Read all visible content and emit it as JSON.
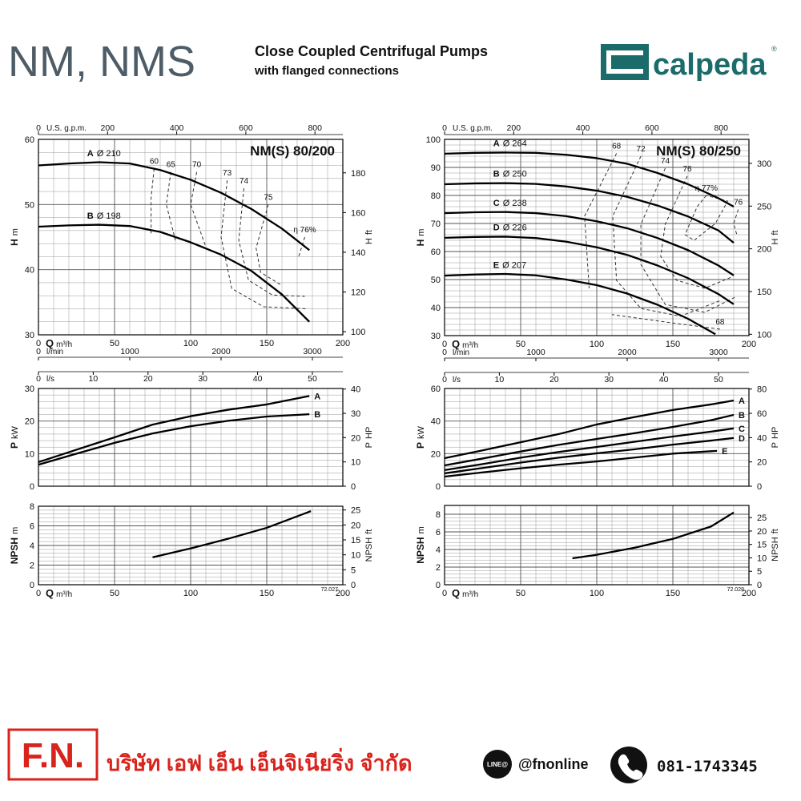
{
  "header": {
    "title": "NM, NMS",
    "subtitle_1": "Close Coupled Centrifugal Pumps",
    "subtitle_2": "with flanged connections",
    "logo": "calpeda",
    "logo_mark": "®"
  },
  "chart_data": [
    {
      "type": "line",
      "title": "NM(S) 80/200",
      "xlabel": "Q",
      "xunit": "m³/h",
      "xlim": [
        0,
        200
      ],
      "xticks": [
        0,
        50,
        100,
        150,
        200
      ],
      "ylabel": "H",
      "yunit": "m",
      "ylim": [
        30,
        60
      ],
      "yticks": [
        30,
        40,
        50,
        60
      ],
      "y2label": "H",
      "y2unit": "ft",
      "y2lim": [
        98.43,
        196.85
      ],
      "y2ticks": [
        100,
        120,
        140,
        160,
        180
      ],
      "grid": true,
      "color": "#000",
      "series_label_position": "start",
      "contour_style": "dashed",
      "extra_x_axes": [
        {
          "label": "U.S. g.p.m.",
          "position": "top",
          "lim": [
            0,
            880.6
          ],
          "ticks": [
            0,
            200,
            400,
            600,
            800
          ]
        },
        {
          "label": "l/min",
          "position": "bottom",
          "lim": [
            0,
            3333.3
          ],
          "ticks": [
            0,
            1000,
            2000,
            3000
          ]
        },
        {
          "label": "l/s",
          "position": "bottom",
          "lim": [
            0,
            55.56
          ],
          "ticks": [
            0,
            10,
            20,
            30,
            40,
            50
          ]
        }
      ],
      "series": [
        {
          "name": "A",
          "diameter": "Ø 210",
          "x": [
            0,
            20,
            40,
            60,
            80,
            100,
            120,
            140,
            160,
            178
          ],
          "values": [
            56,
            56.3,
            56.5,
            56.3,
            55.3,
            53.8,
            51.8,
            49.3,
            46.3,
            43
          ]
        },
        {
          "name": "B",
          "diameter": "Ø 198",
          "x": [
            0,
            20,
            40,
            60,
            80,
            100,
            120,
            140,
            160,
            178
          ],
          "values": [
            46.6,
            46.8,
            46.9,
            46.7,
            45.8,
            44.2,
            42.3,
            39.8,
            36.2,
            32
          ]
        }
      ],
      "efficiency_curves": [
        {
          "name": "60",
          "x": [
            76,
            74,
            74
          ],
          "values": [
            55.5,
            51,
            45.5
          ]
        },
        {
          "name": "65",
          "x": [
            87,
            84,
            90
          ],
          "values": [
            55,
            50,
            44.5
          ]
        },
        {
          "name": "70",
          "x": [
            104,
            100,
            110
          ],
          "values": [
            55,
            50,
            43.5
          ]
        },
        {
          "name": "73",
          "x": [
            124,
            120,
            127,
            148,
            177
          ],
          "values": [
            53.7,
            45,
            37.1,
            34.3,
            34
          ]
        },
        {
          "name": "74",
          "x": [
            135,
            131.6,
            138,
            153.7,
            175
          ],
          "values": [
            52.5,
            44.5,
            38.4,
            36.1,
            35.9
          ]
        },
        {
          "name": "75",
          "x": [
            151,
            143,
            146,
            159
          ],
          "values": [
            50,
            43.3,
            39.6,
            37.7
          ]
        },
        {
          "name": "η 76%",
          "x": [
            175,
            171
          ],
          "values": [
            45,
            42
          ]
        }
      ]
    },
    {
      "type": "line",
      "xlim": [
        0,
        200
      ],
      "xticks": [
        0,
        50,
        100,
        150,
        200
      ],
      "xtick_labels": false,
      "ylabel": "P",
      "yunit": "kW",
      "ylim": [
        0,
        30
      ],
      "yticks": [
        0,
        10,
        20,
        30
      ],
      "y2label": "P",
      "y2unit": "HP",
      "y2lim": [
        0,
        40.23
      ],
      "y2ticks": [
        0,
        10,
        20,
        30,
        40
      ],
      "grid": true,
      "color": "#000",
      "series_label_position": "end",
      "series": [
        {
          "name": "A",
          "x": [
            0,
            25,
            50,
            75,
            100,
            125,
            150,
            178
          ],
          "values": [
            7.4,
            11.2,
            15,
            18.9,
            21.5,
            23.5,
            25.1,
            27.7
          ]
        },
        {
          "name": "B",
          "x": [
            0,
            25,
            50,
            75,
            100,
            125,
            150,
            178
          ],
          "values": [
            6.6,
            10,
            13.3,
            16.2,
            18.4,
            20.1,
            21.4,
            22.1
          ]
        }
      ]
    },
    {
      "type": "line",
      "xlabel": "Q",
      "xunit": "m³/h",
      "xlim": [
        0,
        200
      ],
      "xticks": [
        0,
        50,
        100,
        150,
        200
      ],
      "ylabel": "NPSH",
      "yunit": "m",
      "ylim": [
        0,
        8
      ],
      "yticks": [
        0,
        2,
        4,
        6,
        8
      ],
      "y2label": "NPSH",
      "y2unit": "ft",
      "y2lim": [
        0,
        26.25
      ],
      "y2ticks": [
        0,
        5,
        10,
        15,
        20,
        25
      ],
      "grid": true,
      "color": "#000",
      "code": "72.027",
      "series": [
        {
          "x": [
            75,
            100,
            125,
            150,
            179
          ],
          "values": [
            2.8,
            3.7,
            4.7,
            5.8,
            7.5
          ]
        }
      ]
    },
    {
      "type": "line",
      "title": "NM(S) 80/250",
      "xlabel": "Q",
      "xunit": "m³/h",
      "xlim": [
        0,
        200
      ],
      "xticks": [
        0,
        50,
        100,
        150,
        200
      ],
      "ylabel": "H",
      "yunit": "m",
      "ylim": [
        30,
        100
      ],
      "yticks": [
        30,
        40,
        50,
        60,
        70,
        80,
        90,
        100
      ],
      "y2label": "H",
      "y2unit": "ft",
      "y2lim": [
        98.43,
        328.08
      ],
      "y2ticks": [
        100,
        150,
        200,
        250,
        300
      ],
      "grid": true,
      "color": "#000",
      "series_label_position": "start",
      "contour_style": "dashed",
      "extra_x_axes": [
        {
          "label": "U.S. g.p.m.",
          "position": "top",
          "lim": [
            0,
            880.6
          ],
          "ticks": [
            0,
            200,
            400,
            600,
            800
          ]
        },
        {
          "label": "l/min",
          "position": "bottom",
          "lim": [
            0,
            3333.3
          ],
          "ticks": [
            0,
            1000,
            2000,
            3000
          ]
        },
        {
          "label": "l/s",
          "position": "bottom",
          "lim": [
            0,
            55.56
          ],
          "ticks": [
            0,
            10,
            20,
            30,
            40,
            50
          ]
        }
      ],
      "series": [
        {
          "name": "A",
          "diameter": "Ø 264",
          "x": [
            0,
            20,
            40,
            60,
            80,
            100,
            120,
            140,
            160,
            180,
            190
          ],
          "values": [
            94.9,
            95.2,
            95.3,
            95.2,
            94.5,
            93.3,
            91.3,
            88,
            84,
            79,
            76
          ]
        },
        {
          "name": "B",
          "diameter": "Ø 250",
          "x": [
            0,
            20,
            40,
            60,
            80,
            100,
            120,
            140,
            160,
            180,
            190
          ],
          "values": [
            84,
            84.3,
            84.4,
            84.1,
            83.2,
            81.7,
            79.5,
            76.4,
            72.5,
            67.5,
            63.1
          ]
        },
        {
          "name": "C",
          "diameter": "Ø 238",
          "x": [
            0,
            20,
            40,
            60,
            80,
            100,
            120,
            140,
            160,
            180,
            190
          ],
          "values": [
            73.7,
            74,
            74.1,
            73.7,
            72.6,
            70.8,
            68.3,
            64.8,
            60.5,
            55,
            51.5
          ]
        },
        {
          "name": "D",
          "diameter": "Ø 226",
          "x": [
            0,
            20,
            40,
            60,
            80,
            100,
            120,
            140,
            160,
            180,
            190
          ],
          "values": [
            64.9,
            65.2,
            65.3,
            64.8,
            63.5,
            61.5,
            58.8,
            55,
            50.5,
            44.8,
            41.2
          ]
        },
        {
          "name": "E",
          "diameter": "Ø 207",
          "x": [
            0,
            20,
            40,
            60,
            80,
            100,
            120,
            140,
            160,
            178
          ],
          "values": [
            51.4,
            51.8,
            52,
            51.5,
            50,
            48,
            45,
            41,
            36,
            30.5
          ]
        }
      ],
      "efficiency_curves": [
        {
          "name": "68",
          "x": [
            113,
            92,
            95
          ],
          "values": [
            95,
            72.6,
            46.9
          ]
        },
        {
          "name": "72",
          "x": [
            129,
            110.5,
            113,
            129,
            155,
            181.6
          ],
          "values": [
            94,
            72.6,
            49.7,
            39.7,
            36.9,
            42.6
          ]
        },
        {
          "name": "74",
          "x": [
            145,
            129,
            129,
            145,
            171,
            192
          ],
          "values": [
            89.7,
            69.7,
            55.4,
            41.1,
            38.3,
            44
          ]
        },
        {
          "name": "76",
          "x": [
            159.5,
            145,
            142,
            152.6,
            171,
            189.5
          ],
          "values": [
            86.9,
            69.7,
            58.3,
            49.7,
            46.9,
            51.1
          ]
        },
        {
          "name": "η 77%",
          "x": [
            172,
            166,
            158,
            164,
            178,
            186,
            172
          ],
          "values": [
            80,
            76,
            66,
            64,
            70,
            78,
            80
          ]
        },
        {
          "name": "76",
          "x": [
            193,
            190,
            192
          ],
          "values": [
            75,
            70,
            66
          ]
        },
        {
          "name": "68",
          "x": [
            181,
            150,
            110
          ],
          "values": [
            32.3,
            34.5,
            37.5
          ]
        }
      ]
    },
    {
      "type": "line",
      "xlim": [
        0,
        200
      ],
      "xticks": [
        0,
        50,
        100,
        150,
        200
      ],
      "xtick_labels": false,
      "ylabel": "P",
      "yunit": "kW",
      "ylim": [
        0,
        60
      ],
      "yticks": [
        0,
        20,
        40,
        60
      ],
      "y2label": "P",
      "y2unit": "HP",
      "y2lim": [
        0,
        80.46
      ],
      "y2ticks": [
        0,
        20,
        40,
        60,
        80
      ],
      "grid": true,
      "color": "#000",
      "series_label_position": "end",
      "series": [
        {
          "name": "A",
          "x": [
            0,
            25,
            50,
            75,
            100,
            125,
            150,
            175,
            190
          ],
          "values": [
            17.2,
            22,
            27,
            32,
            37.9,
            42.5,
            46.8,
            50.2,
            52.6
          ]
        },
        {
          "name": "B",
          "x": [
            0,
            25,
            50,
            75,
            100,
            125,
            150,
            175,
            190
          ],
          "values": [
            12.8,
            17,
            21.3,
            25.4,
            29,
            32.6,
            36.4,
            40.5,
            43.8
          ]
        },
        {
          "name": "C",
          "x": [
            0,
            25,
            50,
            75,
            100,
            125,
            150,
            175,
            190
          ],
          "values": [
            9.9,
            13.6,
            17.5,
            21,
            24.1,
            27.3,
            30.5,
            33.5,
            35.5
          ]
        },
        {
          "name": "D",
          "x": [
            0,
            25,
            50,
            75,
            100,
            125,
            150,
            175,
            190
          ],
          "values": [
            7.9,
            11.2,
            14.5,
            17.5,
            20.2,
            22.7,
            25.5,
            28,
            29.6
          ]
        },
        {
          "name": "E",
          "x": [
            0,
            25,
            50,
            75,
            100,
            125,
            150,
            179
          ],
          "values": [
            5.9,
            8.5,
            11,
            13.2,
            15.2,
            17.6,
            20,
            21.7
          ]
        }
      ]
    },
    {
      "type": "line",
      "xlabel": "Q",
      "xunit": "m³/h",
      "xlim": [
        0,
        200
      ],
      "xticks": [
        0,
        50,
        100,
        150,
        200
      ],
      "ylabel": "NPSH",
      "yunit": "m",
      "ylim": [
        0,
        9
      ],
      "yticks": [
        0,
        2,
        4,
        6,
        8
      ],
      "y2label": "NPSH",
      "y2unit": "ft",
      "y2lim": [
        0,
        29.53
      ],
      "y2ticks": [
        0,
        5,
        10,
        15,
        20,
        25
      ],
      "grid": true,
      "color": "#000",
      "code": "72.028",
      "series": [
        {
          "x": [
            84,
            100,
            125,
            150,
            175,
            190
          ],
          "values": [
            3,
            3.4,
            4.2,
            5.2,
            6.6,
            8.2
          ]
        }
      ]
    }
  ],
  "footer": {
    "brand": "F.N.",
    "company": "บริษัท เอฟ เอ็น เอ็นจิเนียริ่ง จำกัด",
    "line_badge": "LINE@",
    "line_id": "@fnonline",
    "phone": "081-1743345"
  }
}
